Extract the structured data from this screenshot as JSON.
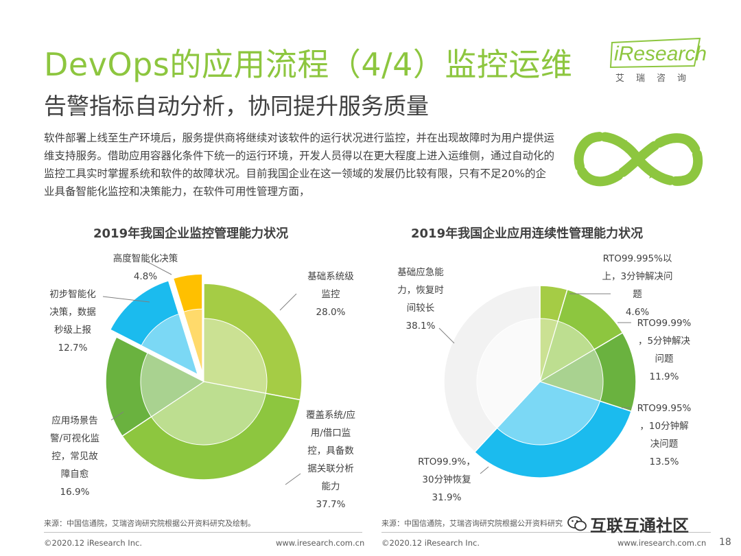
{
  "header": {
    "title": "DevOps的应用流程（4/4）监控运维",
    "subtitle": "告警指标自动分析，协同提升服务质量"
  },
  "logo": {
    "wordmark": "iResearch",
    "cn": "艾瑞咨询"
  },
  "intro": "软件部署上线至生产环境后，服务提供商将继续对该软件的运行状况进行监控，并在出现故障时为用户提供运维支持服务。借助应用容器化条件下统一的运行环境，开发人员得以在更大程度上进入运维侧，通过自动化的监控工具实时掌握系统和软件的故障状况。目前我国企业在这一领域的发展仍比较有限，只有不足20%的企业具备智能化监控和决策能力，在软件可用性管理方面，",
  "chart_data": [
    {
      "type": "pie",
      "title": "2019年我国企业监控管理能力状况",
      "categories": [
        "基础系统级监控",
        "覆盖系统/应用/借口监控，具备数据关联分析能力",
        "应用场景告警/可视化监控，常见故障自愈",
        "初步智能化决策，数据秒级上报",
        "高度智能化决策"
      ],
      "values": [
        28.0,
        37.7,
        16.9,
        12.7,
        4.8
      ],
      "value_labels": [
        "28.0%",
        "37.7%",
        "16.9%",
        "12.7%",
        "4.8%"
      ],
      "colors": [
        "#a5cc45",
        "#8dc63f",
        "#6ab23f",
        "#1bbbee",
        "#ffc000"
      ],
      "exploded": [
        false,
        false,
        false,
        true,
        true
      ]
    },
    {
      "type": "pie",
      "title": "2019年我国企业应用连续性管理能力状况",
      "categories": [
        "RTO99.995%以上，3分钟解决问题",
        "RTO99.99%，5分钟解决问题",
        "RTO99.95%，10分钟解决问题",
        "RTO99.9%，30分钟恢复",
        "基础应急能力，恢复时间较长"
      ],
      "values": [
        4.6,
        11.9,
        13.5,
        31.9,
        38.1
      ],
      "value_labels": [
        "4.6%",
        "11.9%",
        "13.5%",
        "31.9%",
        "38.1%"
      ],
      "colors": [
        "#a5cc45",
        "#8dc63f",
        "#6ab23f",
        "#1bbbee",
        "#f2f2f2"
      ],
      "exploded": [
        false,
        false,
        false,
        false,
        false
      ]
    }
  ],
  "labels": {
    "left": [
      {
        "lines": [
          "基础系统级",
          "监控",
          "28.0%"
        ]
      },
      {
        "lines": [
          "覆盖系统/应",
          "用/借口监",
          "控，具备数",
          "据关联分析",
          "能力",
          "37.7%"
        ]
      },
      {
        "lines": [
          "应用场景告",
          "警/可视化监",
          "控，常见故",
          "障自愈",
          "16.9%"
        ]
      },
      {
        "lines": [
          "初步智能化",
          "决策，数据",
          "秒级上报",
          "12.7%"
        ]
      },
      {
        "lines": [
          "高度智能化决策",
          "4.8%"
        ]
      }
    ],
    "right": [
      {
        "lines": [
          "RTO99.995%以",
          "上，3分钟解决问",
          "题",
          "4.6%"
        ]
      },
      {
        "lines": [
          "RTO99.99%",
          "，5分钟解决",
          "问题",
          "11.9%"
        ]
      },
      {
        "lines": [
          "RTO99.95%",
          "，10分钟解",
          "决问题",
          "13.5%"
        ]
      },
      {
        "lines": [
          "RTO99.9%，",
          "30分钟恢复",
          "31.9%"
        ]
      },
      {
        "lines": [
          "基础应急能",
          "力，恢复时",
          "间较长",
          "38.1%"
        ]
      }
    ]
  },
  "footer": {
    "source_left": "来源：中国信通院，艾瑞咨询研究院根据公开资料研究及绘制。",
    "source_right": "来源：中国信通院，艾瑞咨询研究院根据公开资料研究",
    "copyright_left": "©2020.12 iResearch Inc.",
    "url_left": "www.iresearch.com.cn",
    "copyright_right": "©2020.12 iResearch Inc.",
    "url_right": "www.iresearch.com.cn",
    "page_number": "18",
    "watermark": "互联互通社区"
  }
}
